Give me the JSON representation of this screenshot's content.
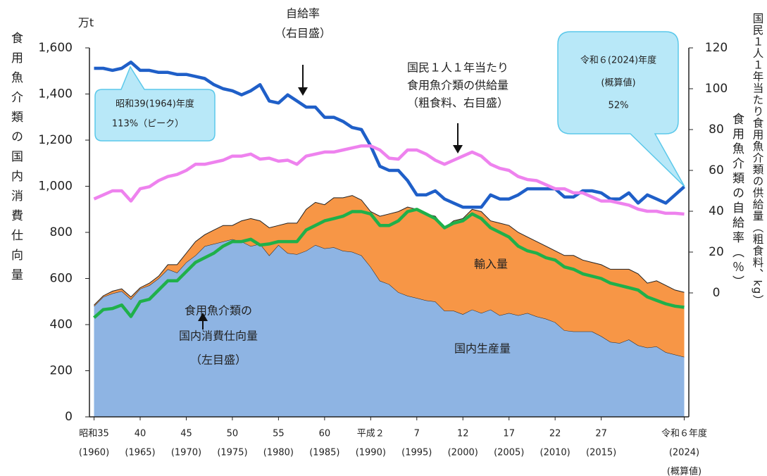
{
  "chart_data": {
    "type": "area",
    "y_unit": "万t",
    "y_label": "食用魚介類の国内消費仕向量",
    "y2_label": "食用魚介類の自給率（％）",
    "y3_label": "国民１人１年当たり食用魚介類の供給量（粗食料、kg）",
    "x": [
      1960,
      1961,
      1962,
      1963,
      1964,
      1965,
      1966,
      1967,
      1968,
      1969,
      1970,
      1971,
      1972,
      1973,
      1974,
      1975,
      1976,
      1977,
      1978,
      1979,
      1980,
      1981,
      1982,
      1983,
      1984,
      1985,
      1986,
      1987,
      1988,
      1989,
      1990,
      1991,
      1992,
      1993,
      1994,
      1995,
      1996,
      1997,
      1998,
      1999,
      2000,
      2001,
      2002,
      2003,
      2004,
      2005,
      2006,
      2007,
      2008,
      2009,
      2010,
      2011,
      2012,
      2013,
      2014,
      2015,
      2016,
      2017,
      2018,
      2019,
      2020,
      2021,
      2022,
      2023,
      2024
    ],
    "xlim": [
      1959.5,
      2024.5
    ],
    "xticks": [
      {
        "value": 1960,
        "label": [
          "昭和35",
          "(1960)"
        ]
      },
      {
        "value": 1965,
        "label": [
          "40",
          "(1965)"
        ]
      },
      {
        "value": 1970,
        "label": [
          "45",
          "(1970)"
        ]
      },
      {
        "value": 1975,
        "label": [
          "50",
          "(1975)"
        ]
      },
      {
        "value": 1980,
        "label": [
          "55",
          "(1980)"
        ]
      },
      {
        "value": 1985,
        "label": [
          "60",
          "(1985)"
        ]
      },
      {
        "value": 1990,
        "label": [
          "平成２",
          "(1990)"
        ]
      },
      {
        "value": 1995,
        "label": [
          "7",
          "(1995)"
        ]
      },
      {
        "value": 2000,
        "label": [
          "12",
          "(2000)"
        ]
      },
      {
        "value": 2005,
        "label": [
          "17",
          "(2005)"
        ]
      },
      {
        "value": 2010,
        "label": [
          "22",
          "(2010)"
        ]
      },
      {
        "value": 2015,
        "label": [
          "27",
          "(2015)"
        ]
      },
      {
        "value": 2024,
        "label": [
          "令和６年度",
          "(2024)",
          "(概算値)"
        ]
      }
    ],
    "ylim": [
      0,
      1600
    ],
    "yticks": [
      0,
      200,
      400,
      600,
      800,
      {
        "value": 1000,
        "label": "1,000"
      },
      {
        "value": 1200,
        "label": "1,200"
      },
      {
        "value": 1400,
        "label": "1,400"
      },
      {
        "value": 1600,
        "label": "1,600"
      }
    ],
    "y2lim": [
      -60.7,
      120
    ],
    "y2ticks": [
      0,
      20,
      40,
      60,
      80,
      100,
      120
    ],
    "series": [
      {
        "name": "国内生産量",
        "type": "area",
        "color": "#8eb4e3",
        "values": [
          480,
          520,
          535,
          545,
          510,
          555,
          570,
          600,
          640,
          625,
          670,
          700,
          740,
          750,
          760,
          770,
          760,
          740,
          750,
          700,
          745,
          710,
          705,
          720,
          745,
          730,
          735,
          720,
          715,
          700,
          650,
          590,
          575,
          540,
          525,
          515,
          505,
          500,
          460,
          460,
          445,
          465,
          450,
          465,
          440,
          450,
          440,
          450,
          435,
          425,
          410,
          375,
          370,
          370,
          370,
          350,
          325,
          320,
          335,
          310,
          300,
          305,
          280,
          270,
          260
        ]
      },
      {
        "name": "輸入量",
        "type": "area",
        "color": "#f79646",
        "values": [
          5,
          5,
          10,
          10,
          10,
          5,
          10,
          10,
          20,
          35,
          40,
          60,
          50,
          60,
          70,
          60,
          90,
          120,
          100,
          120,
          85,
          130,
          135,
          180,
          185,
          190,
          215,
          230,
          245,
          240,
          240,
          280,
          305,
          350,
          385,
          385,
          375,
          370,
          360,
          390,
          415,
          435,
          440,
          385,
          400,
          380,
          360,
          330,
          325,
          315,
          310,
          325,
          330,
          310,
          300,
          310,
          315,
          320,
          305,
          310,
          280,
          285,
          290,
          280,
          280
        ]
      },
      {
        "type": "line",
        "color": "#1fb04a",
        "values": [
          430,
          465,
          470,
          485,
          435,
          500,
          510,
          550,
          590,
          590,
          630,
          670,
          690,
          710,
          740,
          760,
          760,
          770,
          745,
          750,
          760,
          760,
          760,
          810,
          830,
          850,
          860,
          870,
          890,
          890,
          880,
          830,
          830,
          850,
          890,
          900,
          880,
          860,
          820,
          840,
          850,
          880,
          860,
          820,
          800,
          780,
          740,
          720,
          710,
          690,
          680,
          650,
          640,
          620,
          610,
          600,
          580,
          570,
          560,
          550,
          520,
          505,
          490,
          480,
          475
        ]
      },
      {
        "type": "line",
        "axis": "y2",
        "color": "#1f5fc8",
        "values": [
          110,
          110,
          109,
          110,
          113,
          109,
          109,
          108,
          108,
          107,
          107,
          106,
          105,
          102,
          100,
          99,
          97,
          99,
          102,
          94,
          93,
          97,
          94,
          91,
          91,
          86,
          86,
          84,
          81,
          80,
          72,
          62,
          60,
          60,
          55,
          48,
          48,
          50,
          46,
          44,
          42,
          42,
          42,
          48,
          46,
          46,
          48,
          51,
          51,
          51,
          51,
          47,
          47,
          50,
          50,
          49,
          46,
          46,
          49,
          44,
          48,
          46,
          44,
          48,
          52
        ]
      },
      {
        "type": "line",
        "axis": "y2",
        "color": "#ee82ee",
        "values": [
          46,
          48,
          50,
          50,
          45,
          51,
          52,
          55,
          57,
          58,
          60,
          63,
          63,
          64,
          65,
          67,
          67,
          68,
          65.5,
          66,
          64.5,
          65,
          63,
          67,
          68,
          69,
          69,
          70,
          71,
          72,
          72,
          70,
          66,
          65.5,
          70,
          70,
          68,
          65,
          63,
          65,
          67,
          69,
          67,
          63,
          61,
          60,
          57,
          55.5,
          55,
          53,
          51,
          51,
          49,
          49,
          47,
          45,
          45,
          44,
          43,
          41,
          40,
          40,
          39,
          39,
          38.6
        ]
      }
    ],
    "annotations": {
      "self_sufficiency": [
        "自給率",
        "（右目盛）"
      ],
      "per_capita": [
        "国民１人１年当たり",
        "食用魚介類の供給量",
        "（粗食料、右目盛）"
      ],
      "consumption": [
        "食用魚介類の",
        "国内消費仕向量",
        "（左目盛）"
      ]
    },
    "callouts": [
      [
        "昭和39(1964)年度",
        "113%（ピーク）"
      ],
      [
        "令和６(2024)年度",
        "(概算値)",
        "52%"
      ]
    ]
  }
}
